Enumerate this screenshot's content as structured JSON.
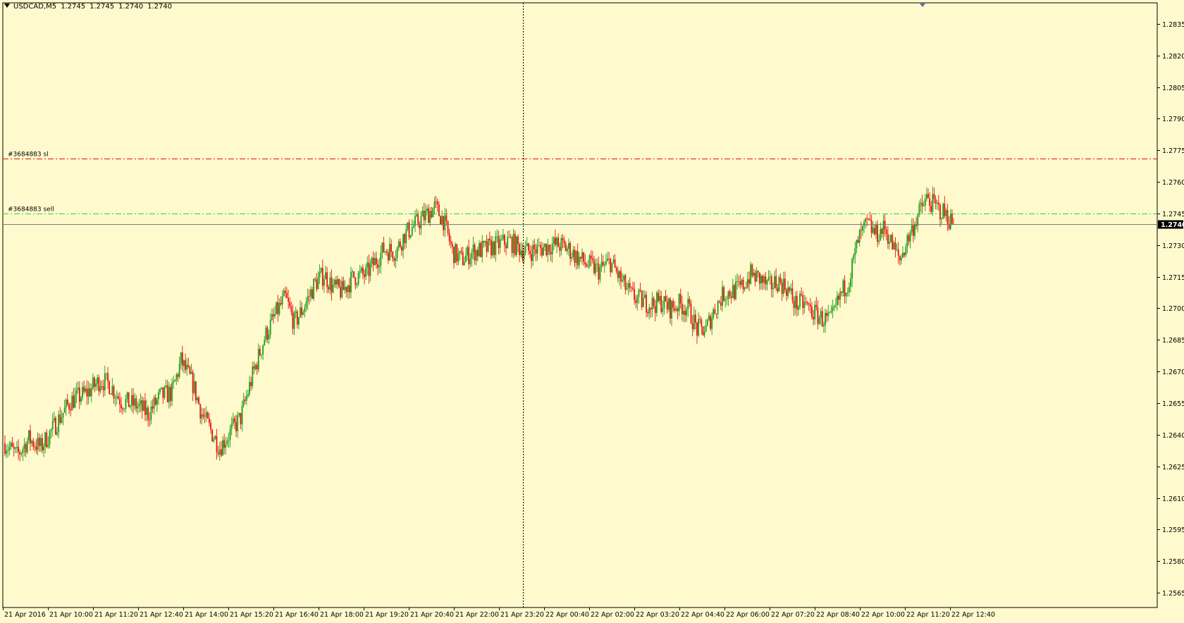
{
  "header": {
    "symbol": "USDCAD,M5",
    "open": "1.2745",
    "high": "1.2745",
    "low": "1.2740",
    "close": "1.2740"
  },
  "colors": {
    "background": "#fffacd",
    "bull": "#1a9c1a",
    "bear": "#e8100f",
    "sl_line": "#e8100f",
    "order_line": "#32cd32",
    "bid_line": "#708070",
    "grid_border": "#000000"
  },
  "chart_data": {
    "type": "candlestick",
    "symbol": "USDCAD",
    "timeframe": "M5",
    "ylim": [
      1.2558,
      1.2845
    ],
    "y_ticks": [
      "1.2835",
      "1.2820",
      "1.2805",
      "1.2790",
      "1.2775",
      "1.2760",
      "1.2745",
      "1.2730",
      "1.2715",
      "1.2700",
      "1.2685",
      "1.2670",
      "1.2655",
      "1.2640",
      "1.2625",
      "1.2610",
      "1.2595",
      "1.2580",
      "1.2565"
    ],
    "x_tick_labels": [
      "21 Apr 2016",
      "21 Apr 10:00",
      "21 Apr 11:20",
      "21 Apr 12:40",
      "21 Apr 14:00",
      "21 Apr 15:20",
      "21 Apr 16:40",
      "21 Apr 18:00",
      "21 Apr 19:20",
      "21 Apr 20:40",
      "21 Apr 22:00",
      "21 Apr 23:20",
      "22 Apr 00:40",
      "22 Apr 02:00",
      "22 Apr 03:20",
      "22 Apr 04:40",
      "22 Apr 06:00",
      "22 Apr 07:20",
      "22 Apr 08:40",
      "22 Apr 10:00",
      "22 Apr 11:20",
      "22 Apr 12:40"
    ],
    "path_points": [
      [
        0,
        1.2636
      ],
      [
        8,
        1.263
      ],
      [
        16,
        1.2638
      ],
      [
        24,
        1.2634
      ],
      [
        34,
        1.2645
      ],
      [
        44,
        1.2656
      ],
      [
        55,
        1.266
      ],
      [
        64,
        1.2666
      ],
      [
        70,
        1.2664
      ],
      [
        78,
        1.2656
      ],
      [
        88,
        1.2654
      ],
      [
        96,
        1.265
      ],
      [
        104,
        1.2658
      ],
      [
        112,
        1.266
      ],
      [
        118,
        1.2675
      ],
      [
        126,
        1.2664
      ],
      [
        132,
        1.265
      ],
      [
        138,
        1.2642
      ],
      [
        144,
        1.2634
      ],
      [
        150,
        1.264
      ],
      [
        158,
        1.2648
      ],
      [
        166,
        1.2668
      ],
      [
        174,
        1.2686
      ],
      [
        182,
        1.2698
      ],
      [
        188,
        1.2705
      ],
      [
        194,
        1.2693
      ],
      [
        200,
        1.27
      ],
      [
        208,
        1.2712
      ],
      [
        214,
        1.2716
      ],
      [
        220,
        1.271
      ],
      [
        226,
        1.2708
      ],
      [
        234,
        1.2715
      ],
      [
        242,
        1.2716
      ],
      [
        248,
        1.2722
      ],
      [
        254,
        1.2728
      ],
      [
        262,
        1.2727
      ],
      [
        268,
        1.2735
      ],
      [
        274,
        1.2739
      ],
      [
        282,
        1.2744
      ],
      [
        288,
        1.2748
      ],
      [
        294,
        1.2742
      ],
      [
        300,
        1.2727
      ],
      [
        306,
        1.2723
      ],
      [
        314,
        1.2727
      ],
      [
        322,
        1.2728
      ],
      [
        330,
        1.273
      ],
      [
        338,
        1.2732
      ],
      [
        344,
        1.2729
      ],
      [
        350,
        1.2727
      ],
      [
        358,
        1.2728
      ],
      [
        366,
        1.273
      ],
      [
        372,
        1.273
      ],
      [
        378,
        1.2728
      ],
      [
        384,
        1.2724
      ],
      [
        390,
        1.2721
      ],
      [
        398,
        1.2718
      ],
      [
        406,
        1.2722
      ],
      [
        414,
        1.2712
      ],
      [
        420,
        1.2706
      ],
      [
        428,
        1.2703
      ],
      [
        434,
        1.2702
      ],
      [
        440,
        1.2703
      ],
      [
        446,
        1.27
      ],
      [
        452,
        1.2702
      ],
      [
        458,
        1.27
      ],
      [
        464,
        1.269
      ],
      [
        470,
        1.269
      ],
      [
        476,
        1.27
      ],
      [
        482,
        1.2707
      ],
      [
        488,
        1.2708
      ],
      [
        494,
        1.271
      ],
      [
        500,
        1.2716
      ],
      [
        506,
        1.2714
      ],
      [
        512,
        1.271
      ],
      [
        518,
        1.2713
      ],
      [
        524,
        1.271
      ],
      [
        530,
        1.2702
      ],
      [
        536,
        1.2702
      ],
      [
        542,
        1.2698
      ],
      [
        548,
        1.2695
      ],
      [
        554,
        1.2694
      ],
      [
        560,
        1.2706
      ],
      [
        566,
        1.2714
      ],
      [
        572,
        1.2732
      ],
      [
        578,
        1.274
      ],
      [
        584,
        1.2735
      ],
      [
        590,
        1.2738
      ],
      [
        596,
        1.2728
      ],
      [
        600,
        1.2723
      ],
      [
        606,
        1.2734
      ],
      [
        612,
        1.2744
      ],
      [
        618,
        1.2752
      ],
      [
        624,
        1.2748
      ],
      [
        630,
        1.2745
      ],
      [
        636,
        1.274
      ]
    ],
    "n_candles": 637,
    "current_price": "1.2740",
    "levels": [
      {
        "label": "#3684883 sl",
        "price": 1.2771
      },
      {
        "label": "#3684883 sell",
        "price": 1.2745
      }
    ],
    "grid": false,
    "period_separators": false,
    "crosshair": true
  }
}
